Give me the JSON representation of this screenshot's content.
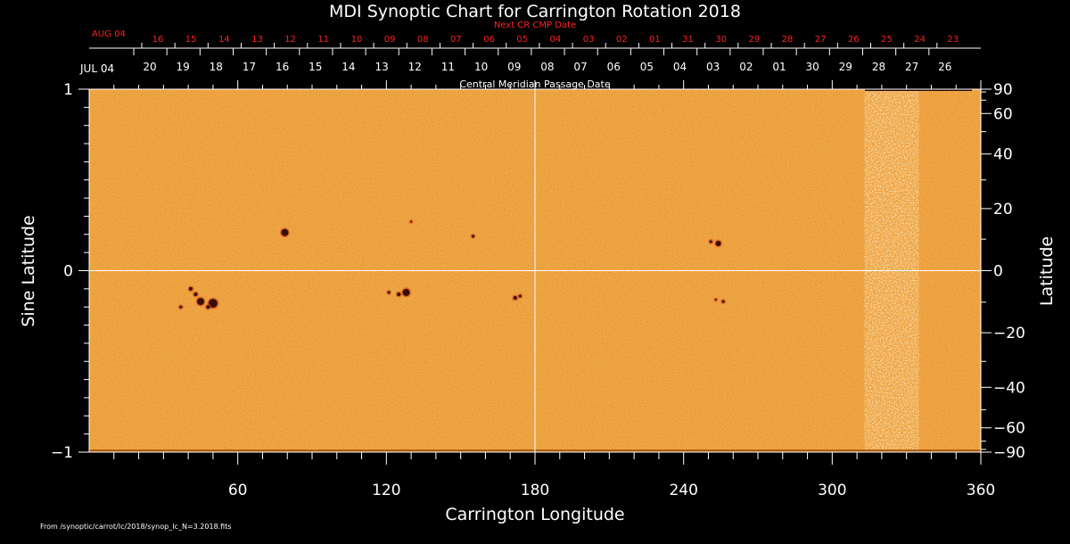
{
  "chart_data": {
    "type": "heatmap",
    "title": "MDI Synoptic Chart for Carrington Rotation 2018",
    "xlabel": "Carrington Longitude",
    "ylabel_left": "Sine Latitude",
    "ylabel_right": "Latitude",
    "xlim": [
      0,
      360
    ],
    "ylim": [
      -1,
      1
    ],
    "x_ticks": [
      60,
      120,
      180,
      240,
      300,
      360
    ],
    "y_ticks_left": [
      -1,
      0,
      1
    ],
    "y_ticks_left_labels": [
      "−1",
      "0",
      "1"
    ],
    "y_ticks_right": [
      -90,
      -60,
      -40,
      -20,
      0,
      20,
      40,
      60,
      90
    ],
    "y_ticks_right_labels": [
      "−90",
      "−60",
      "−40",
      "−20",
      "0",
      "20",
      "40",
      "60",
      "90"
    ],
    "center_lines": {
      "x": 180,
      "y": 0
    },
    "background_color": "#fba94a",
    "spot_color": "#3a0d05",
    "noisy_band_lon": [
      313,
      335
    ],
    "cmp_label": "Central Meridian Passage Date",
    "cmp_month": "JUL 04",
    "cmp_dates": [
      "20",
      "19",
      "18",
      "17",
      "16",
      "15",
      "14",
      "13",
      "12",
      "11",
      "10",
      "09",
      "08",
      "07",
      "06",
      "05",
      "04",
      "03",
      "02",
      "01",
      "30",
      "29",
      "28",
      "27",
      "26"
    ],
    "next_label": "Next CR CMP Date",
    "next_month": "AUG 04",
    "next_dates": [
      "16",
      "15",
      "14",
      "13",
      "12",
      "11",
      "10",
      "09",
      "08",
      "07",
      "06",
      "05",
      "04",
      "03",
      "02",
      "01",
      "31",
      "30",
      "29",
      "28",
      "27",
      "26",
      "25",
      "24",
      "23"
    ],
    "next_color": "#ff2020",
    "sunspots": [
      {
        "lon": 79,
        "sinlat": 0.21,
        "r": 4
      },
      {
        "lon": 50,
        "sinlat": -0.18,
        "r": 5
      },
      {
        "lon": 45,
        "sinlat": -0.17,
        "r": 4
      },
      {
        "lon": 43,
        "sinlat": -0.13,
        "r": 2
      },
      {
        "lon": 41,
        "sinlat": -0.1,
        "r": 2
      },
      {
        "lon": 48,
        "sinlat": -0.2,
        "r": 2
      },
      {
        "lon": 37,
        "sinlat": -0.2,
        "r": 1.5
      },
      {
        "lon": 128,
        "sinlat": -0.12,
        "r": 4
      },
      {
        "lon": 125,
        "sinlat": -0.13,
        "r": 2
      },
      {
        "lon": 121,
        "sinlat": -0.12,
        "r": 1.5
      },
      {
        "lon": 172,
        "sinlat": -0.15,
        "r": 2
      },
      {
        "lon": 174,
        "sinlat": -0.14,
        "r": 1.5
      },
      {
        "lon": 155,
        "sinlat": 0.19,
        "r": 1.5
      },
      {
        "lon": 130,
        "sinlat": 0.27,
        "r": 1
      },
      {
        "lon": 254,
        "sinlat": 0.15,
        "r": 3
      },
      {
        "lon": 251,
        "sinlat": 0.16,
        "r": 1.5
      },
      {
        "lon": 256,
        "sinlat": -0.17,
        "r": 1.5
      },
      {
        "lon": 253,
        "sinlat": -0.16,
        "r": 1
      }
    ],
    "footer": "From /synoptic/carrot/Ic/2018/synop_Ic_N=3.2018.fits"
  }
}
